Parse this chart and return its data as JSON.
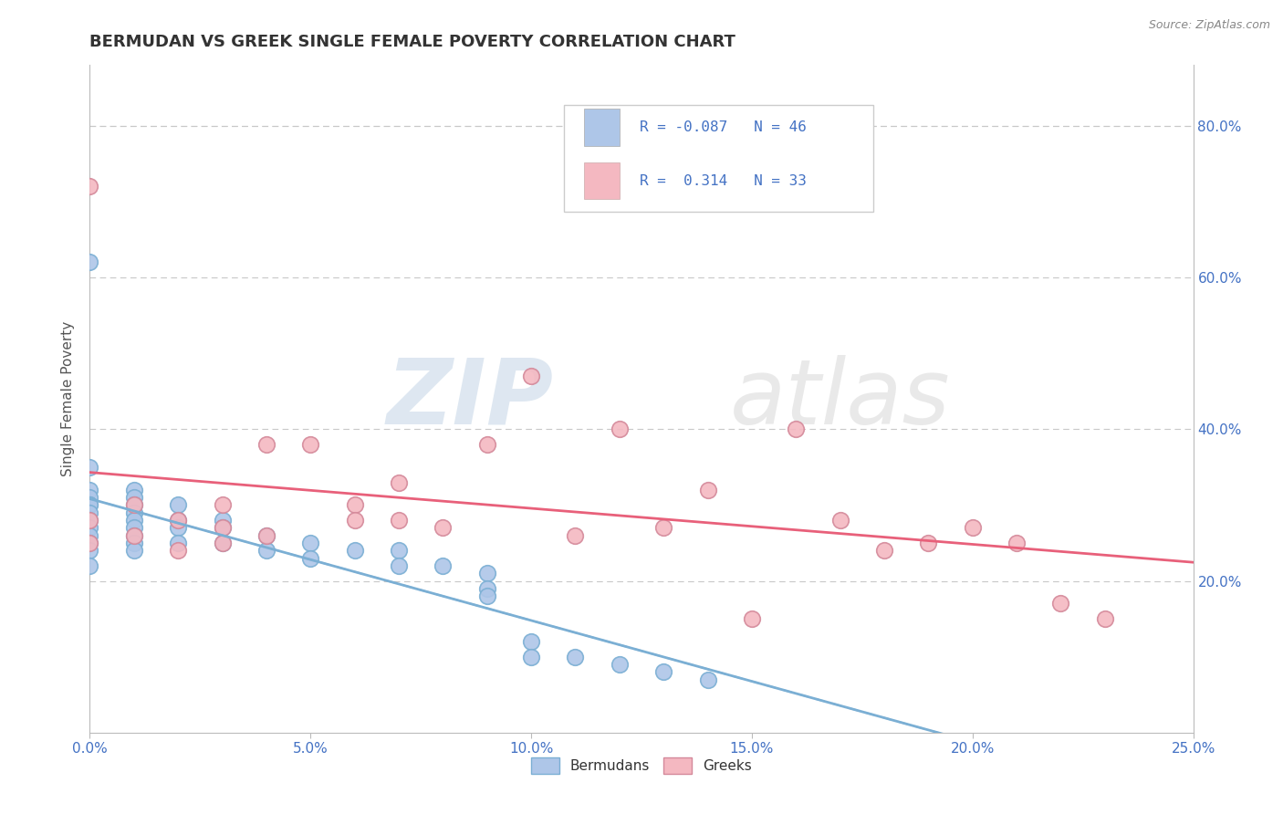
{
  "title": "BERMUDAN VS GREEK SINGLE FEMALE POVERTY CORRELATION CHART",
  "source": "Source: ZipAtlas.com",
  "ylabel": "Single Female Poverty",
  "xlim": [
    0.0,
    0.25
  ],
  "ylim": [
    0.0,
    0.88
  ],
  "xticks": [
    0.0,
    0.05,
    0.1,
    0.15,
    0.2,
    0.25
  ],
  "yticks_right": [
    0.2,
    0.4,
    0.6,
    0.8
  ],
  "bermudan_R": -0.087,
  "bermudan_N": 46,
  "greek_R": 0.314,
  "greek_N": 33,
  "bermudan_color": "#aec6e8",
  "greek_color": "#f4b8c1",
  "bermudan_line_color": "#7bafd4",
  "greek_line_color": "#e8607a",
  "bermudan_x": [
    0.0,
    0.0,
    0.0,
    0.0,
    0.0,
    0.0,
    0.0,
    0.0,
    0.0,
    0.0,
    0.0,
    0.0,
    0.0,
    0.01,
    0.01,
    0.01,
    0.01,
    0.01,
    0.01,
    0.01,
    0.01,
    0.01,
    0.02,
    0.02,
    0.02,
    0.02,
    0.03,
    0.03,
    0.03,
    0.04,
    0.04,
    0.05,
    0.05,
    0.06,
    0.07,
    0.07,
    0.08,
    0.09,
    0.09,
    0.09,
    0.1,
    0.1,
    0.11,
    0.12,
    0.13,
    0.14
  ],
  "bermudan_y": [
    0.62,
    0.35,
    0.32,
    0.31,
    0.3,
    0.3,
    0.29,
    0.28,
    0.27,
    0.26,
    0.25,
    0.24,
    0.22,
    0.32,
    0.31,
    0.3,
    0.29,
    0.28,
    0.27,
    0.26,
    0.25,
    0.24,
    0.3,
    0.28,
    0.27,
    0.25,
    0.28,
    0.27,
    0.25,
    0.26,
    0.24,
    0.25,
    0.23,
    0.24,
    0.24,
    0.22,
    0.22,
    0.21,
    0.19,
    0.18,
    0.12,
    0.1,
    0.1,
    0.09,
    0.08,
    0.07
  ],
  "greek_x": [
    0.0,
    0.0,
    0.0,
    0.01,
    0.01,
    0.02,
    0.02,
    0.03,
    0.03,
    0.03,
    0.04,
    0.04,
    0.05,
    0.06,
    0.06,
    0.07,
    0.07,
    0.08,
    0.09,
    0.1,
    0.11,
    0.12,
    0.13,
    0.14,
    0.15,
    0.16,
    0.17,
    0.18,
    0.19,
    0.2,
    0.21,
    0.22,
    0.23
  ],
  "greek_y": [
    0.72,
    0.28,
    0.25,
    0.3,
    0.26,
    0.28,
    0.24,
    0.3,
    0.27,
    0.25,
    0.38,
    0.26,
    0.38,
    0.3,
    0.28,
    0.33,
    0.28,
    0.27,
    0.38,
    0.47,
    0.26,
    0.4,
    0.27,
    0.32,
    0.15,
    0.4,
    0.28,
    0.24,
    0.25,
    0.27,
    0.25,
    0.17,
    0.15
  ],
  "watermark_zip": "ZIP",
  "watermark_atlas": "atlas",
  "background_color": "#ffffff",
  "grid_color": "#c8c8c8",
  "title_color": "#333333",
  "axis_color": "#4472c4",
  "ylabel_color": "#555555",
  "source_color": "#888888"
}
